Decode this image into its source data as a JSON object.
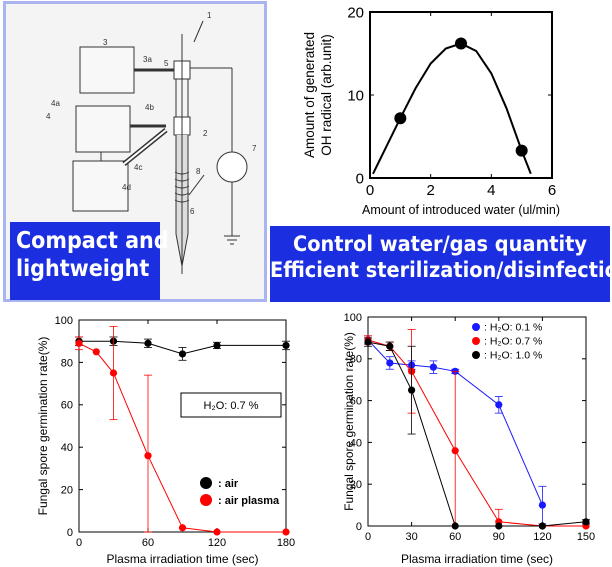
{
  "schematic": {
    "labels": [
      "1",
      "2",
      "3",
      "3a",
      "4",
      "4a",
      "4b",
      "4c",
      "4d",
      "5",
      "6",
      "7",
      "8"
    ]
  },
  "banners": {
    "left": [
      "Compact and",
      "lightweight"
    ],
    "right": [
      "Control water/gas quantity",
      "Efficient sterilization/disinfection"
    ]
  },
  "chart_data": [
    {
      "type": "line",
      "xlabel": "Amount of introduced water (ul/min)",
      "ylabel": [
        "Amount of generated",
        "OH radical  (arb.unit)"
      ],
      "xlim": [
        0,
        6
      ],
      "ylim": [
        0,
        20
      ],
      "xticks": [
        0,
        2,
        4,
        6
      ],
      "yticks": [
        0,
        10,
        20
      ],
      "points": [
        [
          1,
          7.2
        ],
        [
          3,
          16.2
        ],
        [
          5,
          3.3
        ]
      ],
      "curve": [
        [
          0.1,
          0.5
        ],
        [
          0.5,
          3.5
        ],
        [
          1,
          7.2
        ],
        [
          1.5,
          10.8
        ],
        [
          2,
          13.8
        ],
        [
          2.5,
          15.6
        ],
        [
          3,
          16.2
        ],
        [
          3.5,
          15.3
        ],
        [
          4,
          12.6
        ],
        [
          4.5,
          8.4
        ],
        [
          5,
          3.3
        ],
        [
          5.3,
          0.5
        ]
      ]
    },
    {
      "type": "line",
      "xlabel": "Plasma irradiation time (sec)",
      "ylabel": "Fungal spore germination rate(%)",
      "xlim": [
        0,
        180
      ],
      "ylim": [
        0,
        100
      ],
      "xticks": [
        0,
        60,
        120,
        180
      ],
      "yticks": [
        0,
        20,
        40,
        60,
        80,
        100
      ],
      "annotation": "H₂O: 0.7 %",
      "legend_position": "bottom-right",
      "series": [
        {
          "name": "air",
          "color": "#000000",
          "x": [
            0,
            30,
            60,
            90,
            120,
            180
          ],
          "y": [
            90,
            90,
            89,
            84,
            88,
            88
          ],
          "err": [
            2,
            2,
            2,
            3,
            1.5,
            2
          ]
        },
        {
          "name": "air plasma",
          "color": "#ff0000",
          "x": [
            0,
            15,
            30,
            60,
            90,
            120,
            180
          ],
          "y": [
            89,
            85,
            75,
            36,
            2,
            0,
            0
          ],
          "err": [
            3,
            0,
            22,
            38,
            0,
            0,
            0
          ]
        }
      ]
    },
    {
      "type": "line",
      "xlabel": "Plasma irradiation time (sec)",
      "ylabel": "Fungal spore germination rate(%)",
      "xlim": [
        0,
        150
      ],
      "ylim": [
        0,
        100
      ],
      "xticks": [
        0,
        30,
        60,
        90,
        120,
        150
      ],
      "yticks": [
        0,
        20,
        40,
        60,
        80,
        100
      ],
      "legend_position": "top-right",
      "series": [
        {
          "name": "H₂O: 0.1 %",
          "color": "#1a1aff",
          "x": [
            0,
            15,
            30,
            45,
            60,
            90,
            120
          ],
          "y": [
            89,
            78,
            77,
            76,
            74,
            58,
            10
          ],
          "err": [
            2,
            3,
            2,
            3,
            1,
            4,
            9
          ]
        },
        {
          "name": "H₂O: 0.7 %",
          "color": "#ff0000",
          "x": [
            0,
            15,
            30,
            60,
            90,
            120,
            150
          ],
          "y": [
            89,
            86,
            74,
            36,
            2,
            0,
            0
          ],
          "err": [
            2,
            2,
            20,
            38,
            6,
            0,
            0
          ]
        },
        {
          "name": "H₂O: 1.0 %",
          "color": "#000000",
          "x": [
            0,
            15,
            30,
            60,
            90,
            120,
            150
          ],
          "y": [
            88,
            86,
            65,
            0,
            0,
            0,
            2
          ],
          "err": [
            2,
            2,
            21,
            0,
            0,
            0,
            1
          ]
        }
      ]
    }
  ]
}
